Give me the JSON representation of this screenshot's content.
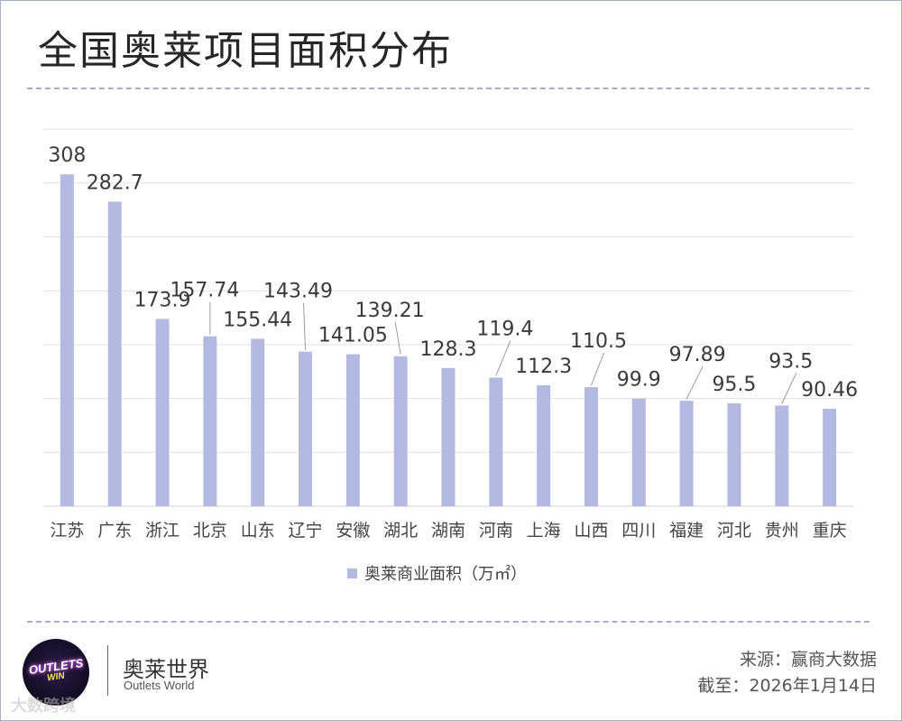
{
  "title": "全国奥莱项目面积分布",
  "chart_data": {
    "type": "bar",
    "title": "全国奥莱项目面积分布",
    "categories": [
      "江苏",
      "广东",
      "浙江",
      "北京",
      "山东",
      "辽宁",
      "安徽",
      "湖北",
      "湖南",
      "河南",
      "上海",
      "山西",
      "四川",
      "福建",
      "河北",
      "贵州",
      "重庆"
    ],
    "series": [
      {
        "name": "奥莱商业面积（万㎡）",
        "values": [
          308,
          282.7,
          173.9,
          157.74,
          155.44,
          143.49,
          141.05,
          139.21,
          128.3,
          119.4,
          112.3,
          110.5,
          99.9,
          97.89,
          95.5,
          93.5,
          90.46
        ],
        "labels": [
          "308",
          "282.7",
          "173.9",
          "157.74",
          "155.44",
          "143.49",
          "141.05",
          "139.21",
          "128.3",
          "119.4",
          "112.3",
          "110.5",
          "99.9",
          "97.89",
          "95.5",
          "93.5",
          "90.46"
        ]
      }
    ],
    "ylim": [
      0,
      350
    ],
    "gridlines": [
      0,
      50,
      100,
      150,
      200,
      250,
      300,
      350
    ],
    "grid": true,
    "legend": "bottom-center",
    "bar_color": "#b4b9e2",
    "label_color": "#3a3a3a",
    "grid_color": "#e2e2e2"
  },
  "legend": {
    "label": "奥莱商业面积（万㎡）"
  },
  "footer": {
    "brand_cn": "奥莱世界",
    "brand_en": "Outlets World",
    "logo_text": "OUTLETS",
    "logo_sub": "WIN",
    "source": "来源：赢商大数据",
    "cutoff": "截至：2026年1月14日",
    "watermark": "大数跨境"
  }
}
